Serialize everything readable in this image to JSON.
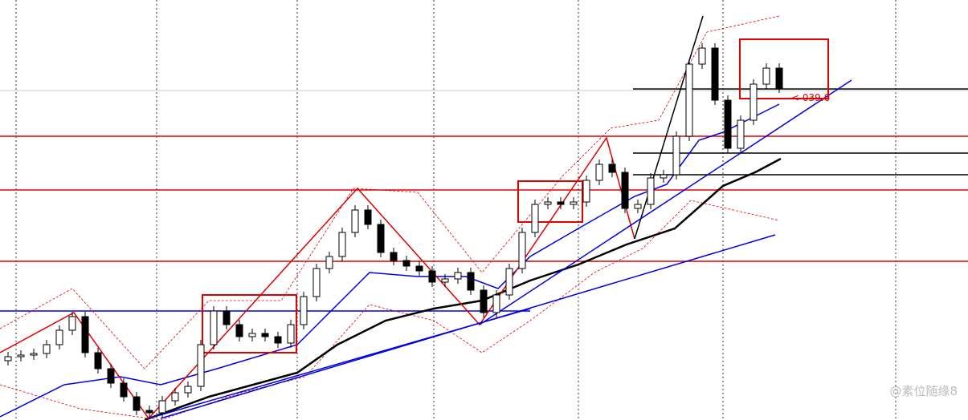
{
  "chart_data": {
    "type": "candlestick",
    "ylim": [
      0,
      524
    ],
    "open": [
      74,
      79,
      81,
      83,
      94,
      112,
      129,
      84,
      64,
      46,
      29,
      12,
      9,
      24,
      34,
      42,
      94,
      136,
      119,
      104,
      108,
      104,
      96,
      119,
      154,
      189,
      204,
      234,
      262,
      244,
      209,
      199,
      192,
      186,
      172,
      176,
      184,
      162,
      134,
      156,
      189,
      234,
      269,
      272,
      269,
      272,
      299,
      319,
      309,
      264,
      269,
      302,
      306,
      354,
      444,
      464,
      399,
      339,
      374,
      419,
      439
    ],
    "high": [
      85,
      87,
      89,
      100,
      118,
      135,
      135,
      90,
      70,
      52,
      35,
      18,
      30,
      40,
      48,
      100,
      142,
      142,
      125,
      114,
      114,
      110,
      125,
      160,
      195,
      210,
      240,
      268,
      268,
      250,
      215,
      205,
      198,
      192,
      182,
      190,
      190,
      168,
      162,
      195,
      240,
      275,
      278,
      278,
      278,
      305,
      325,
      325,
      315,
      275,
      308,
      312,
      360,
      450,
      470,
      470,
      405,
      380,
      425,
      445,
      445
    ],
    "low": [
      68,
      73,
      75,
      77,
      88,
      106,
      78,
      58,
      40,
      23,
      6,
      3,
      3,
      18,
      28,
      36,
      88,
      113,
      98,
      98,
      98,
      90,
      90,
      113,
      148,
      183,
      198,
      228,
      238,
      203,
      193,
      186,
      180,
      166,
      166,
      170,
      156,
      128,
      128,
      150,
      183,
      228,
      263,
      263,
      263,
      266,
      293,
      303,
      258,
      258,
      263,
      296,
      300,
      348,
      438,
      393,
      333,
      333,
      368,
      413,
      408
    ],
    "close": [
      79,
      81,
      83,
      94,
      112,
      129,
      84,
      64,
      46,
      29,
      12,
      9,
      24,
      34,
      42,
      94,
      136,
      119,
      104,
      108,
      104,
      96,
      119,
      154,
      189,
      204,
      234,
      262,
      244,
      209,
      199,
      192,
      186,
      172,
      176,
      184,
      162,
      134,
      156,
      189,
      234,
      269,
      272,
      269,
      272,
      299,
      319,
      309,
      264,
      269,
      302,
      306,
      354,
      444,
      464,
      399,
      339,
      374,
      419,
      439,
      414
    ],
    "up_color": "#ffffff",
    "down_color": "#000000",
    "annotations": [
      "< 039.0"
    ]
  },
  "watermark": "@素位随缘8"
}
